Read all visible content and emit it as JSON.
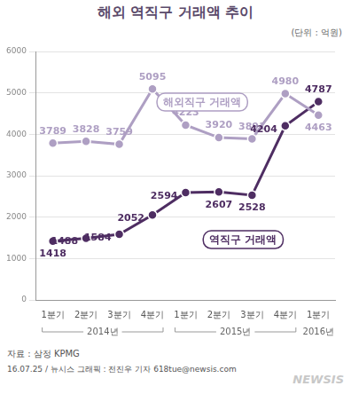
{
  "chart_data": {
    "type": "line",
    "title": "해외 역직구 거래액 추이",
    "unit_label": "(단위 : 억원)",
    "categories": [
      "1분기",
      "2분기",
      "3분기",
      "4분기",
      "1분기",
      "2분기",
      "3분기",
      "4분기",
      "1분기"
    ],
    "year_groups": [
      {
        "label": "2014년",
        "first": 0,
        "last": 3
      },
      {
        "label": "2015년",
        "first": 4,
        "last": 7
      },
      {
        "label": "2016년",
        "first": 8,
        "last": 8
      }
    ],
    "series": [
      {
        "name": "해외직구 거래액",
        "color": "#ae9fc3",
        "values": [
          3789,
          3828,
          3759,
          5095,
          4223,
          3920,
          3891,
          4980,
          4463
        ]
      },
      {
        "name": "역직구 거래액",
        "color": "#4e2d62",
        "values": [
          1418,
          1488,
          1584,
          2052,
          2594,
          2607,
          2528,
          4204,
          4787
        ]
      }
    ],
    "ylim": [
      0,
      6000
    ],
    "yticks": [
      0,
      1000,
      2000,
      3000,
      4000,
      5000,
      6000
    ],
    "grid": true,
    "data_labels": true,
    "marker": "circle",
    "source": "자료 : 삼정 KPMG",
    "credit": "16.07.25 / 뉴시스 그래픽 : 전진우 기자 618tue@newsis.com",
    "watermark": "NEWSIS"
  }
}
